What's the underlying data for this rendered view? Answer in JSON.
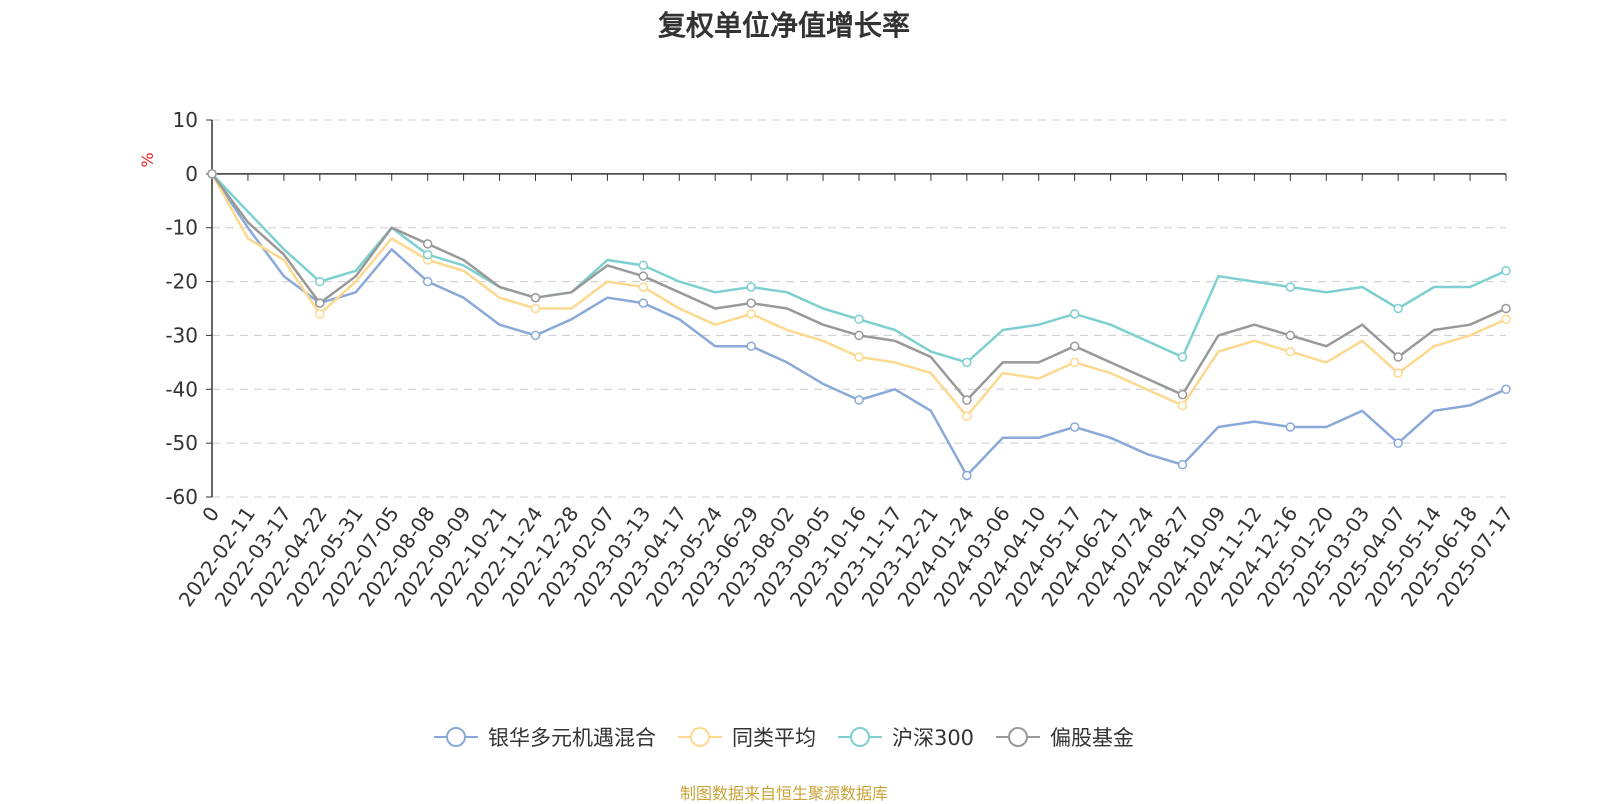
{
  "chart_data": {
    "type": "line",
    "title": "复权单位净值增长率",
    "ylabel": "%",
    "ylim": [
      -60,
      10
    ],
    "yticks": [
      10,
      0,
      -10,
      -20,
      -30,
      -40,
      -50,
      -60
    ],
    "grid": true,
    "legend_position": "bottom",
    "x_start_label": "0",
    "categories": [
      "2022-02-11",
      "2022-03-17",
      "2022-04-22",
      "2022-05-31",
      "2022-07-05",
      "2022-08-08",
      "2022-09-09",
      "2022-10-21",
      "2022-11-24",
      "2022-12-28",
      "2023-02-07",
      "2023-03-13",
      "2023-04-17",
      "2023-05-24",
      "2023-06-29",
      "2023-08-02",
      "2023-09-05",
      "2023-10-16",
      "2023-11-17",
      "2023-12-21",
      "2024-01-24",
      "2024-03-06",
      "2024-04-10",
      "2024-05-17",
      "2024-06-21",
      "2024-07-24",
      "2024-08-27",
      "2024-10-09",
      "2024-11-12",
      "2024-12-16",
      "2025-01-20",
      "2025-03-03",
      "2025-04-07",
      "2025-05-14",
      "2025-06-18",
      "2025-07-17"
    ],
    "series": [
      {
        "name": "银华多元机遇混合",
        "color": "#8aa9d8",
        "start": 0,
        "values": [
          -10,
          -19,
          -24,
          -22,
          -14,
          -20,
          -23,
          -28,
          -30,
          -27,
          -23,
          -24,
          -27,
          -32,
          -32,
          -35,
          -39,
          -42,
          -40,
          -44,
          -56,
          -49,
          -49,
          -47,
          -49,
          -52,
          -54,
          -47,
          -46,
          -47,
          -47,
          -44,
          -50,
          -44,
          -43,
          -40
        ]
      },
      {
        "name": "同类平均",
        "color": "#fcd98f",
        "start": 0,
        "values": [
          -12,
          -16,
          -26,
          -20,
          -12,
          -16,
          -18,
          -23,
          -25,
          -25,
          -20,
          -21,
          -25,
          -28,
          -26,
          -29,
          -31,
          -34,
          -35,
          -37,
          -45,
          -37,
          -38,
          -35,
          -37,
          -40,
          -43,
          -33,
          -31,
          -33,
          -35,
          -31,
          -37,
          -32,
          -30,
          -27
        ]
      },
      {
        "name": "沪深300",
        "color": "#7ed0d0",
        "start": 0,
        "values": [
          -7,
          -14,
          -20,
          -18,
          -10,
          -15,
          -17,
          -21,
          -23,
          -22,
          -16,
          -17,
          -20,
          -22,
          -21,
          -22,
          -25,
          -27,
          -29,
          -33,
          -35,
          -29,
          -28,
          -26,
          -28,
          -31,
          -34,
          -19,
          -20,
          -21,
          -22,
          -21,
          -25,
          -21,
          -21,
          -18
        ]
      },
      {
        "name": "偏股基金",
        "color": "#999999",
        "start": 0,
        "values": [
          -9,
          -15,
          -24,
          -19,
          -10,
          -13,
          -16,
          -21,
          -23,
          -22,
          -17,
          -19,
          -22,
          -25,
          -24,
          -25,
          -28,
          -30,
          -31,
          -34,
          -42,
          -35,
          -35,
          -32,
          -35,
          -38,
          -41,
          -30,
          -28,
          -30,
          -32,
          -28,
          -34,
          -29,
          -28,
          -25
        ]
      }
    ]
  },
  "footer": "制图数据来自恒生聚源数据库"
}
